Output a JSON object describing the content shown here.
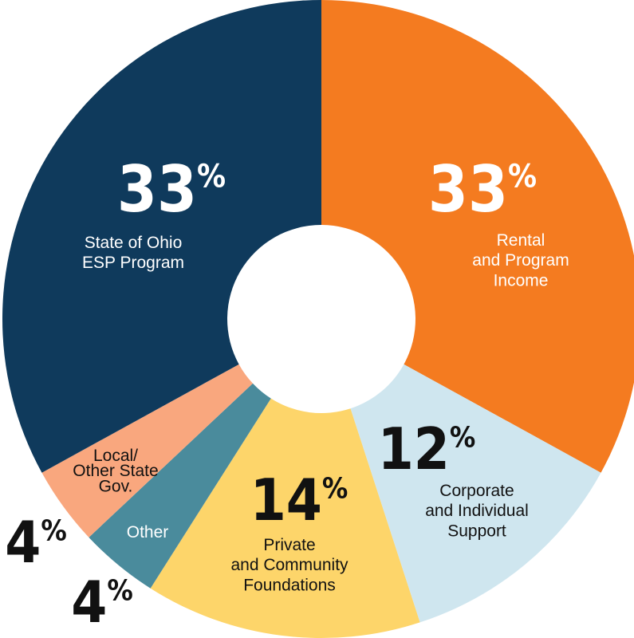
{
  "chart_data": {
    "type": "donut",
    "categories": [
      "Rental\nand Program\nIncome",
      "Corporate\nand Individual\nSupport",
      "Private\nand Community\nFoundations",
      "Other",
      "Local/\nOther State\nGov.",
      "State of Ohio\nESP Program"
    ],
    "values": [
      33,
      12,
      14,
      4,
      4,
      33
    ],
    "value_labels": [
      "33%",
      "12%",
      "14%",
      "4%",
      "4%",
      "33%"
    ],
    "colors": [
      "#f47b20",
      "#cfe6ef",
      "#fdd56a",
      "#4a8b9c",
      "#f9a77e",
      "#0f3a5c"
    ]
  }
}
